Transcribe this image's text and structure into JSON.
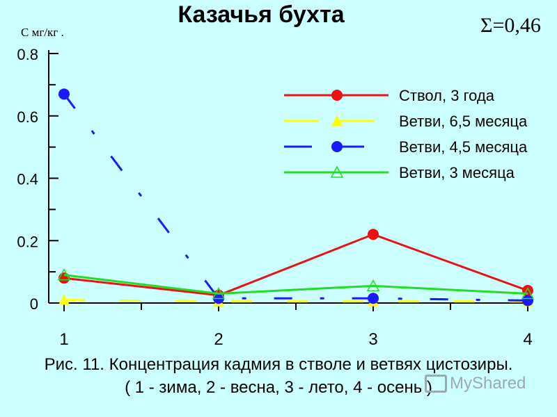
{
  "chart_data": {
    "type": "line",
    "title": "Казачья бухта",
    "ylabel": "С мг/кг .",
    "annotation": "Σ=0,46",
    "caption_line1": "Рис. 11.  Концентрация кадмия в стволе и ветвях цистозиры.",
    "caption_line2": "( 1 - зима, 2 - весна, 3 - лето, 4 - осень )",
    "x": [
      1,
      2,
      3,
      4
    ],
    "x_ticks": [
      "1",
      "2",
      "3",
      "4"
    ],
    "ylim": [
      0,
      0.8
    ],
    "y_ticks": [
      "0",
      "0.2",
      "0.4",
      "0.6",
      "0.8"
    ],
    "legend_position": "top-right",
    "series": [
      {
        "name": "Ствол, 3 года",
        "values": [
          0.08,
          0.025,
          0.22,
          0.04
        ],
        "color": "#ee1111",
        "marker": "circle",
        "dash": "solid"
      },
      {
        "name": "Ветви, 6,5 месяца",
        "values": [
          0.01,
          0.005,
          0.005,
          0.005
        ],
        "color": "#ffff00",
        "marker": "triangle",
        "dash": "dashed"
      },
      {
        "name": "Ветви, 4,5 месяца",
        "values": [
          0.67,
          0.015,
          0.015,
          0.008
        ],
        "color": "#1a1aff",
        "marker": "circle",
        "dash": "dashdot"
      },
      {
        "name": "Ветви, 3 месяца",
        "values": [
          0.09,
          0.03,
          0.055,
          0.03
        ],
        "color": "#22dd22",
        "marker": "triangle-open",
        "dash": "solid"
      }
    ]
  },
  "watermark": "MyShared"
}
